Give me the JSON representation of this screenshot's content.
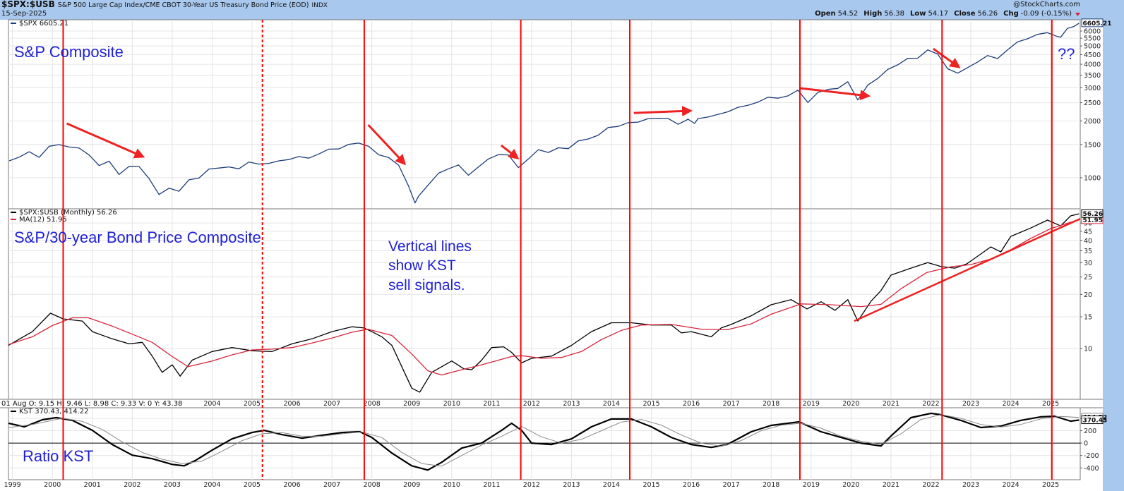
{
  "header": {
    "symbol": "$SPX:$USB",
    "description": "S&P 500 Large Cap Index/CME CBOT 30-Year US Treasury Bond Price (EOD)",
    "exchange": "INDX",
    "date": "15-Sep-2025",
    "watermark": "@StockCharts.com",
    "quote": [
      {
        "label": "Open",
        "value": "54.52"
      },
      {
        "label": "High",
        "value": "56.38"
      },
      {
        "label": "Low",
        "value": "54.17"
      },
      {
        "label": "Close",
        "value": "56.26"
      },
      {
        "label": "Chg",
        "value": "-0.09 (-0.15%)"
      }
    ]
  },
  "chart_data": [
    {
      "type": "line",
      "log": true,
      "grid": true,
      "legend": [
        "$SPX 6605.21"
      ],
      "annotations": [
        "S&P Composite",
        "??"
      ],
      "xlim": [
        1998.9,
        2025.74
      ],
      "ylim": [
        684,
        6888
      ],
      "yticks": [
        1000,
        1500,
        2000,
        2500,
        3000,
        3500,
        4000,
        4500,
        5000,
        5500,
        6000
      ],
      "series": [
        {
          "color": "#1d3c78",
          "last_label": "6605.21",
          "x": [
            1998.92,
            1999.17,
            1999.42,
            1999.67,
            1999.92,
            2000.17,
            2000.42,
            2000.67,
            2000.92,
            2001.17,
            2001.42,
            2001.67,
            2001.92,
            2002.17,
            2002.42,
            2002.67,
            2002.92,
            2003.17,
            2003.42,
            2003.67,
            2003.92,
            2004.17,
            2004.42,
            2004.67,
            2004.92,
            2005.17,
            2005.42,
            2005.67,
            2005.92,
            2006.17,
            2006.42,
            2006.67,
            2006.92,
            2007.17,
            2007.42,
            2007.67,
            2007.92,
            2008.17,
            2008.42,
            2008.67,
            2008.92,
            2009.08,
            2009.17,
            2009.42,
            2009.67,
            2009.92,
            2010.17,
            2010.42,
            2010.67,
            2010.92,
            2011.17,
            2011.42,
            2011.67,
            2011.92,
            2012.17,
            2012.42,
            2012.67,
            2012.92,
            2013.17,
            2013.42,
            2013.67,
            2013.92,
            2014.17,
            2014.42,
            2014.67,
            2014.92,
            2015.17,
            2015.42,
            2015.67,
            2015.92,
            2016.08,
            2016.17,
            2016.42,
            2016.67,
            2016.92,
            2017.17,
            2017.42,
            2017.67,
            2017.92,
            2018.17,
            2018.42,
            2018.67,
            2018.92,
            2019.17,
            2019.42,
            2019.67,
            2019.92,
            2020.17,
            2020.42,
            2020.67,
            2020.92,
            2021.17,
            2021.42,
            2021.67,
            2021.92,
            2022.17,
            2022.42,
            2022.67,
            2022.92,
            2023.17,
            2023.42,
            2023.67,
            2023.92,
            2024.17,
            2024.42,
            2024.67,
            2024.92,
            2025.17,
            2025.25,
            2025.42,
            2025.58,
            2025.71
          ],
          "values": [
            1229,
            1286,
            1373,
            1282,
            1469,
            1499,
            1455,
            1436,
            1320,
            1160,
            1224,
            1041,
            1148,
            1147,
            990,
            815,
            880,
            848,
            975,
            996,
            1112,
            1126,
            1141,
            1115,
            1212,
            1181,
            1191,
            1229,
            1248,
            1295,
            1270,
            1336,
            1418,
            1421,
            1503,
            1527,
            1468,
            1323,
            1280,
            1166,
            903,
            735,
            798,
            919,
            1057,
            1115,
            1169,
            1031,
            1141,
            1258,
            1326,
            1321,
            1131,
            1258,
            1408,
            1362,
            1441,
            1426,
            1569,
            1606,
            1682,
            1848,
            1872,
            1960,
            1972,
            2059,
            2068,
            2063,
            1920,
            2044,
            1940,
            2060,
            2099,
            2168,
            2239,
            2363,
            2423,
            2519,
            2674,
            2641,
            2718,
            2914,
            2507,
            2834,
            2942,
            2977,
            3231,
            2585,
            3100,
            3363,
            3756,
            3973,
            4298,
            4308,
            4766,
            4530,
            3785,
            3586,
            3840,
            4109,
            4450,
            4288,
            4770,
            5254,
            5460,
            5762,
            5882,
            5612,
            5569,
            6205,
            6339,
            6605.21
          ]
        }
      ],
      "arrows": [
        {
          "x": [
            2000.36,
            2002.27
          ],
          "y": [
            1940,
            1293
          ]
        },
        {
          "x": [
            2007.91,
            2008.82
          ],
          "y": [
            1907,
            1187
          ]
        },
        {
          "x": [
            2011.24,
            2011.65
          ],
          "y": [
            1485,
            1271
          ]
        },
        {
          "x": [
            2014.56,
            2015.98
          ],
          "y": [
            2207,
            2266
          ]
        },
        {
          "x": [
            2018.72,
            2020.44
          ],
          "y": [
            2985,
            2714
          ]
        },
        {
          "x": [
            2022.06,
            2022.7
          ],
          "y": [
            4836,
            3865
          ]
        }
      ],
      "arrow_color": "#ee2222"
    },
    {
      "type": "line",
      "log": true,
      "grid": true,
      "legend": [
        "$SPX:$USB (Monthly) 56.26",
        "MA(12) 51.95"
      ],
      "annotations": [
        "S&P/30-year Bond Price Composite",
        "Vertical lines",
        "show KST",
        "sell signals."
      ],
      "info": "01 Aug O: 9.15 H: 9.46 L: 8.98 C: 9.33 V: 0 Y: 43.38",
      "xlim": [
        1998.9,
        2025.74
      ],
      "ylim": [
        5.2,
        60
      ],
      "yticks": [
        10,
        15,
        20,
        25,
        30,
        35,
        40,
        45,
        50
      ],
      "series": [
        {
          "color": "#000000",
          "last_label": "56.26",
          "x": [
            1998.9,
            1999.5,
            1999.95,
            2000.27,
            2000.75,
            2001.0,
            2001.5,
            2001.92,
            2002.25,
            2002.5,
            2002.75,
            2003.0,
            2003.2,
            2003.5,
            2004.0,
            2004.5,
            2005.0,
            2005.5,
            2006.0,
            2006.5,
            2007.0,
            2007.5,
            2007.8,
            2008.0,
            2008.25,
            2008.5,
            2008.75,
            2009.0,
            2009.2,
            2009.5,
            2009.75,
            2010.0,
            2010.3,
            2010.5,
            2010.75,
            2011.0,
            2011.3,
            2011.5,
            2011.75,
            2012.0,
            2012.5,
            2013.0,
            2013.5,
            2014.0,
            2014.5,
            2015.0,
            2015.5,
            2015.75,
            2016.0,
            2016.5,
            2016.75,
            2017.0,
            2017.5,
            2018.0,
            2018.5,
            2018.9,
            2019.25,
            2019.6,
            2019.92,
            2020.17,
            2020.5,
            2020.75,
            2021.0,
            2021.5,
            2021.92,
            2022.25,
            2022.6,
            2022.9,
            2023.25,
            2023.5,
            2023.75,
            2024.0,
            2024.5,
            2024.92,
            2025.25,
            2025.5,
            2025.71
          ],
          "values": [
            10.4,
            12.4,
            15.7,
            14.6,
            14.2,
            12.4,
            11.3,
            10.6,
            10.8,
            9.05,
            7.35,
            8.1,
            7.0,
            8.6,
            9.6,
            10.1,
            9.7,
            9.6,
            10.6,
            11.3,
            12.4,
            13.2,
            13.0,
            12.4,
            11.6,
            10.4,
            7.9,
            6.0,
            5.7,
            7.35,
            7.9,
            8.5,
            7.7,
            7.6,
            8.6,
            10.1,
            10.2,
            9.5,
            8.3,
            8.8,
            9.05,
            10.4,
            12.4,
            13.9,
            13.9,
            13.5,
            13.5,
            12.2,
            12.4,
            11.6,
            13.0,
            13.6,
            15.2,
            17.5,
            18.7,
            16.6,
            18.2,
            16.3,
            18.7,
            14.2,
            18.3,
            21.0,
            25.6,
            28.0,
            30.1,
            28.6,
            28.0,
            29.6,
            33.6,
            36.8,
            34.5,
            42.1,
            46.9,
            51.9,
            48.2,
            54.8,
            56.26
          ]
        },
        {
          "color": "#d8243a",
          "last_label": "51.95",
          "x": [
            1998.9,
            1999.5,
            2000.0,
            2000.5,
            2000.9,
            2001.5,
            2002.0,
            2002.5,
            2003.0,
            2003.4,
            2004.0,
            2004.5,
            2005.0,
            2005.5,
            2006.0,
            2006.5,
            2007.0,
            2007.5,
            2007.9,
            2008.5,
            2009.0,
            2009.4,
            2009.75,
            2010.25,
            2010.75,
            2011.5,
            2011.75,
            2012.25,
            2012.75,
            2013.25,
            2013.75,
            2014.25,
            2014.75,
            2015.5,
            2016.25,
            2016.9,
            2017.5,
            2018.0,
            2018.75,
            2019.5,
            2020.25,
            2020.75,
            2021.25,
            2021.9,
            2022.5,
            2023.0,
            2023.5,
            2024.0,
            2024.5,
            2025.0,
            2025.5,
            2025.71
          ],
          "values": [
            10.5,
            11.6,
            13.4,
            14.8,
            14.8,
            13.3,
            12.0,
            10.8,
            9.0,
            7.9,
            8.5,
            9.2,
            9.8,
            9.9,
            10.1,
            10.7,
            11.4,
            12.3,
            12.8,
            11.8,
            9.3,
            7.5,
            7.1,
            7.6,
            8.1,
            9.0,
            9.1,
            8.8,
            8.9,
            9.6,
            11.2,
            12.6,
            13.5,
            13.6,
            12.8,
            12.7,
            13.7,
            15.5,
            17.7,
            17.5,
            17.1,
            17.6,
            21.5,
            26.5,
            28.5,
            29.3,
            31.5,
            35.5,
            41,
            46.5,
            50.5,
            51.95
          ]
        }
      ],
      "trendlines": [
        {
          "x": [
            2020.08,
            2025.74
          ],
          "y": [
            14.2,
            52.8
          ]
        }
      ],
      "arrow_color": "#ee2222"
    },
    {
      "type": "line",
      "log": false,
      "grid": true,
      "legend": [
        "KST 370.43, 414.22"
      ],
      "annotations": [
        "Ratio KST"
      ],
      "xlim": [
        1998.9,
        2025.74
      ],
      "ylim": [
        -590,
        570
      ],
      "yticks": [
        400,
        200,
        0,
        -200,
        -400
      ],
      "xticks": [
        1999,
        2000,
        2001,
        2002,
        2003,
        2004,
        2005,
        2006,
        2007,
        2008,
        2009,
        2010,
        2011,
        2012,
        2013,
        2014,
        2015,
        2016,
        2017,
        2018,
        2019,
        2020,
        2021,
        2022,
        2023,
        2024,
        2025
      ],
      "series": [
        {
          "color": "#000000",
          "width": 2.2,
          "last_label": "370.43",
          "x": [
            1998.9,
            1999.3,
            1999.75,
            2000.1,
            2000.5,
            2001.0,
            2001.5,
            2002.0,
            2002.5,
            2003.0,
            2003.3,
            2003.6,
            2004.0,
            2004.5,
            2005.0,
            2005.3,
            2005.75,
            2006.25,
            2006.75,
            2007.25,
            2007.7,
            2008.0,
            2008.5,
            2009.0,
            2009.4,
            2009.75,
            2010.25,
            2010.75,
            2011.25,
            2011.5,
            2011.75,
            2012.0,
            2012.5,
            2013.0,
            2013.5,
            2014.0,
            2014.5,
            2015.0,
            2015.5,
            2016.0,
            2016.5,
            2016.9,
            2017.5,
            2018.0,
            2018.7,
            2019.25,
            2019.75,
            2020.25,
            2020.75,
            2021.0,
            2021.5,
            2022.0,
            2022.25,
            2022.75,
            2023.25,
            2023.75,
            2024.25,
            2024.75,
            2025.1,
            2025.5,
            2025.71
          ],
          "values": [
            320,
            263,
            377,
            411,
            366,
            206,
            -23,
            -194,
            -251,
            -343,
            -366,
            -274,
            -114,
            69,
            171,
            206,
            137,
            80,
            126,
            171,
            183,
            91,
            -160,
            -366,
            -434,
            -309,
            -80,
            0,
            206,
            320,
            206,
            0,
            -23,
            69,
            263,
            389,
            389,
            263,
            91,
            -23,
            -69,
            -23,
            183,
            286,
            343,
            183,
            91,
            0,
            -46,
            114,
            411,
            480,
            457,
            366,
            251,
            274,
            366,
            423,
            434,
            354,
            370.43
          ]
        },
        {
          "color": "#8a8a8a",
          "width": 1,
          "last_label": "414.22",
          "x": [
            1998.9,
            1999.5,
            2000.25,
            2000.75,
            2001.25,
            2001.75,
            2002.25,
            2002.75,
            2003.25,
            2003.75,
            2004.25,
            2004.75,
            2005.25,
            2005.75,
            2006.25,
            2006.75,
            2007.25,
            2007.75,
            2008.25,
            2008.75,
            2009.25,
            2009.75,
            2010.25,
            2010.75,
            2011.25,
            2011.75,
            2012.25,
            2012.75,
            2013.25,
            2013.75,
            2014.25,
            2014.75,
            2015.25,
            2015.75,
            2016.25,
            2016.75,
            2017.25,
            2017.75,
            2018.25,
            2018.75,
            2019.25,
            2019.75,
            2020.25,
            2020.75,
            2021.25,
            2021.75,
            2022.25,
            2022.75,
            2023.25,
            2023.75,
            2024.25,
            2024.75,
            2025.25,
            2025.71
          ],
          "values": [
            250,
            300,
            400,
            350,
            220,
            20,
            -150,
            -260,
            -330,
            -290,
            -130,
            40,
            150,
            170,
            110,
            110,
            150,
            180,
            90,
            -150,
            -330,
            -370,
            -200,
            -30,
            110,
            270,
            100,
            0,
            60,
            200,
            340,
            380,
            290,
            130,
            0,
            -50,
            40,
            200,
            290,
            320,
            240,
            110,
            30,
            -20,
            150,
            380,
            460,
            400,
            300,
            260,
            300,
            390,
            430,
            414.22
          ]
        }
      ],
      "signals": [
        {
          "x": 2000.27,
          "dashed": false
        },
        {
          "x": 2005.26,
          "dashed": true
        },
        {
          "x": 2007.81,
          "dashed": false
        },
        {
          "x": 2011.73,
          "dashed": false
        },
        {
          "x": 2014.46,
          "dashed": false
        },
        {
          "x": 2018.72,
          "dashed": false
        },
        {
          "x": 2022.28,
          "dashed": false
        },
        {
          "x": 2025.03,
          "dashed": false
        }
      ],
      "signal_color": "#ff0000"
    }
  ]
}
